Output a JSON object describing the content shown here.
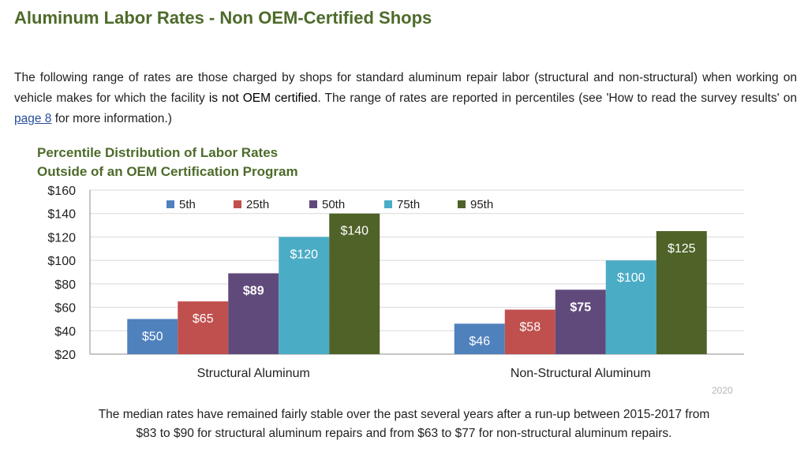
{
  "page": {
    "title": "Aluminum Labor Rates - Non OEM-Certified Shops",
    "intro_part1": "The following range of rates are those charged by shops for standard aluminum repair labor (structural and non-structural) when working on vehicle makes for which the facility ",
    "intro_bold": "is not OEM certified",
    "intro_part2": ". The range of rates are reported in percentiles (see 'How to read the survey results' on ",
    "intro_link": "page 8",
    "intro_part3": " for more information.)",
    "year_label": "2020",
    "footer_line1": "The median rates have remained fairly stable over the past several years after a run-up between 2015-2017 from",
    "footer_line2": "$83 to $90 for structural aluminum repairs and from $63 to $77 for non-structural aluminum repairs."
  },
  "chart_data": {
    "type": "bar",
    "title_line1": "Percentile Distribution of Labor Rates",
    "title_line2": "Outside of an OEM Certification Program",
    "categories": [
      "Structural Aluminum",
      "Non-Structural Aluminum"
    ],
    "series": [
      {
        "name": "5th",
        "values": [
          50,
          46
        ],
        "labels": [
          "$50",
          "$46"
        ],
        "color": "#4f81bd"
      },
      {
        "name": "25th",
        "values": [
          65,
          58
        ],
        "labels": [
          "$65",
          "$58"
        ],
        "color": "#c0504d"
      },
      {
        "name": "50th",
        "values": [
          89,
          75
        ],
        "labels": [
          "$89",
          "$75"
        ],
        "color": "#604a7b"
      },
      {
        "name": "75th",
        "values": [
          120,
          100
        ],
        "labels": [
          "$120",
          "$100"
        ],
        "color": "#4bacc6"
      },
      {
        "name": "95th",
        "values": [
          140,
          125
        ],
        "labels": [
          "$140",
          "$125"
        ],
        "color": "#4f6228"
      }
    ],
    "ylim": [
      20,
      160
    ],
    "yticks": [
      20,
      40,
      60,
      80,
      100,
      120,
      140,
      160
    ],
    "ytick_labels": [
      "$20",
      "$40",
      "$60",
      "$80",
      "$100",
      "$120",
      "$140",
      "$160"
    ],
    "grid": true,
    "legend_position": "top"
  }
}
